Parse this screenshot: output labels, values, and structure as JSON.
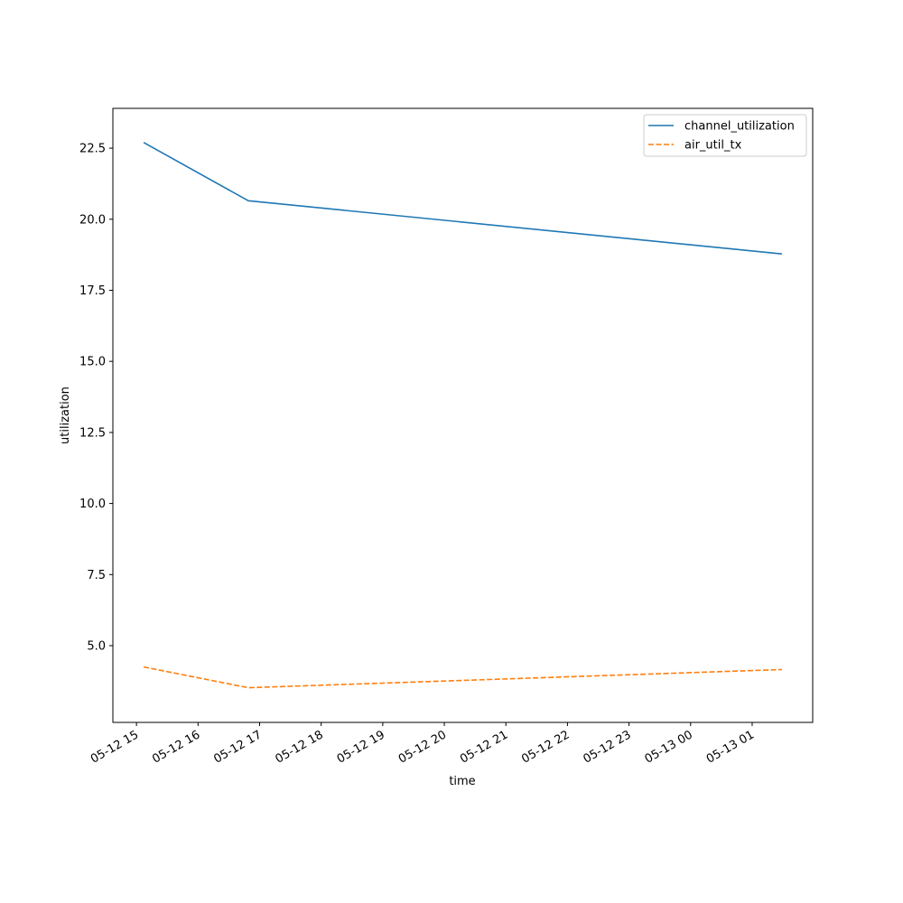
{
  "chart_data": {
    "type": "line",
    "title": "",
    "xlabel": "time",
    "ylabel": "utilization",
    "x_axis_kind": "datetime",
    "x": [
      "2024-05-12 15:07",
      "2024-05-12 16:49",
      "2024-05-13 01:29"
    ],
    "series": [
      {
        "name": "channel_utilization",
        "values": [
          22.7,
          20.65,
          18.78
        ],
        "color": "#1f77b4",
        "style": "solid"
      },
      {
        "name": "air_util_tx",
        "values": [
          4.25,
          3.52,
          4.16
        ],
        "color": "#ff7f0e",
        "style": "dashed"
      }
    ],
    "xlim": [
      "2024-05-12 14:37",
      "2024-05-13 01:59"
    ],
    "ylim": [
      2.3,
      23.9
    ],
    "xticks": [
      {
        "value": "2024-05-12 15:00",
        "label": "05-12 15"
      },
      {
        "value": "2024-05-12 16:00",
        "label": "05-12 16"
      },
      {
        "value": "2024-05-12 17:00",
        "label": "05-12 17"
      },
      {
        "value": "2024-05-12 18:00",
        "label": "05-12 18"
      },
      {
        "value": "2024-05-12 19:00",
        "label": "05-12 19"
      },
      {
        "value": "2024-05-12 20:00",
        "label": "05-12 20"
      },
      {
        "value": "2024-05-12 21:00",
        "label": "05-12 21"
      },
      {
        "value": "2024-05-12 22:00",
        "label": "05-12 22"
      },
      {
        "value": "2024-05-12 23:00",
        "label": "05-12 23"
      },
      {
        "value": "2024-05-13 00:00",
        "label": "05-13 00"
      },
      {
        "value": "2024-05-13 01:00",
        "label": "05-13 01"
      }
    ],
    "yticks": [
      {
        "value": 5.0,
        "label": "5.0"
      },
      {
        "value": 7.5,
        "label": "7.5"
      },
      {
        "value": 10.0,
        "label": "10.0"
      },
      {
        "value": 12.5,
        "label": "12.5"
      },
      {
        "value": 15.0,
        "label": "15.0"
      },
      {
        "value": 17.5,
        "label": "17.5"
      },
      {
        "value": 20.0,
        "label": "20.0"
      },
      {
        "value": 22.5,
        "label": "22.5"
      }
    ],
    "grid": false,
    "legend_position": "top-right"
  }
}
